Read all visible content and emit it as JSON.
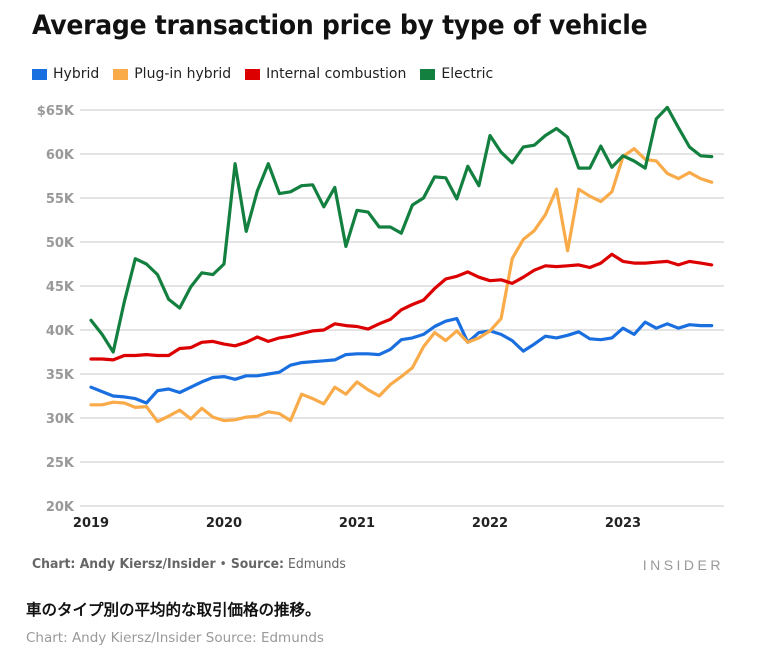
{
  "chart_data": {
    "type": "line",
    "title": "Average transaction price by type of vehicle",
    "xlabel": "",
    "ylabel": "",
    "x_start": "2019-01",
    "x_step": "month",
    "x_tick_labels": [
      "2019",
      "2020",
      "2021",
      "2022",
      "2023"
    ],
    "y_tick_labels": [
      "20K",
      "25K",
      "30K",
      "35K",
      "40K",
      "45K",
      "50K",
      "55K",
      "60K",
      "$65K"
    ],
    "y_ticks": [
      20000,
      25000,
      30000,
      35000,
      40000,
      45000,
      50000,
      55000,
      60000,
      65000
    ],
    "ylim": [
      20000,
      65000
    ],
    "grid": true,
    "legend_position": "top-left",
    "series": [
      {
        "name": "Hybrid",
        "color": "#1a6fe0",
        "values": [
          33.5,
          33.0,
          32.5,
          32.4,
          32.2,
          31.7,
          33.1,
          33.3,
          32.9,
          33.5,
          34.1,
          34.6,
          34.7,
          34.4,
          34.8,
          34.8,
          35.0,
          35.2,
          36.0,
          36.3,
          36.4,
          36.5,
          36.6,
          37.2,
          37.3,
          37.3,
          37.2,
          37.8,
          38.9,
          39.1,
          39.5,
          40.4,
          41.0,
          41.3,
          38.6,
          39.7,
          39.9,
          39.5,
          38.8,
          37.6,
          38.4,
          39.3,
          39.1,
          39.4,
          39.8,
          39.0,
          38.9,
          39.1,
          40.2,
          39.5,
          40.9,
          40.2,
          40.7,
          40.2,
          40.6,
          40.5,
          40.5
        ]
      },
      {
        "name": "Plug-in hybrid",
        "color": "#f9ab4a",
        "values": [
          31.5,
          31.5,
          31.8,
          31.7,
          31.2,
          31.3,
          29.6,
          30.2,
          30.9,
          29.9,
          31.1,
          30.1,
          29.7,
          29.8,
          30.1,
          30.2,
          30.7,
          30.5,
          29.7,
          32.7,
          32.2,
          31.6,
          33.5,
          32.7,
          34.1,
          33.2,
          32.5,
          33.8,
          34.7,
          35.7,
          38.1,
          39.7,
          38.8,
          39.9,
          38.6,
          39.1,
          39.9,
          41.3,
          48.1,
          50.3,
          51.3,
          53.1,
          56.0,
          49.0,
          56.0,
          55.2,
          54.6,
          55.7,
          59.7,
          60.6,
          59.4,
          59.2,
          57.8,
          57.2,
          57.9,
          57.2,
          56.8
        ]
      },
      {
        "name": "Internal combustion",
        "color": "#dc0000",
        "values": [
          36.7,
          36.7,
          36.6,
          37.1,
          37.1,
          37.2,
          37.1,
          37.1,
          37.9,
          38.0,
          38.6,
          38.7,
          38.4,
          38.2,
          38.6,
          39.2,
          38.7,
          39.1,
          39.3,
          39.6,
          39.9,
          40.0,
          40.7,
          40.5,
          40.4,
          40.1,
          40.7,
          41.2,
          42.3,
          42.9,
          43.4,
          44.7,
          45.8,
          46.1,
          46.6,
          46.0,
          45.6,
          45.7,
          45.3,
          46.0,
          46.8,
          47.3,
          47.2,
          47.3,
          47.4,
          47.1,
          47.6,
          48.6,
          47.8,
          47.6,
          47.6,
          47.7,
          47.8,
          47.4,
          47.8,
          47.6,
          47.4
        ]
      },
      {
        "name": "Electric",
        "color": "#138040",
        "values": [
          41.1,
          39.5,
          37.5,
          43.2,
          48.1,
          47.5,
          46.3,
          43.5,
          42.5,
          44.9,
          46.5,
          46.3,
          47.5,
          58.9,
          51.2,
          55.8,
          58.9,
          55.5,
          55.7,
          56.4,
          56.5,
          54.0,
          56.2,
          49.5,
          53.6,
          53.4,
          51.7,
          51.7,
          51.0,
          54.2,
          55.0,
          57.4,
          57.3,
          54.9,
          58.6,
          56.4,
          62.1,
          60.2,
          59.0,
          60.8,
          61.0,
          62.1,
          62.9,
          61.9,
          58.4,
          58.4,
          60.9,
          58.5,
          59.8,
          59.2,
          58.4,
          64.0,
          65.3,
          63.0,
          60.8,
          59.8,
          59.7
        ]
      }
    ],
    "value_units": "thousands of US dollars"
  },
  "footer": {
    "credit_prefix": "Chart: Andy Kiersz/Insider",
    "credit_separator": " • ",
    "credit_source": "Source:",
    "credit_source_name": " Edmunds",
    "brand": "INSIDER"
  },
  "caption": {
    "text": "車のタイプ別の平均的な取引価格の推移。",
    "credit": "Chart: Andy Kiersz/Insider Source: Edmunds"
  }
}
